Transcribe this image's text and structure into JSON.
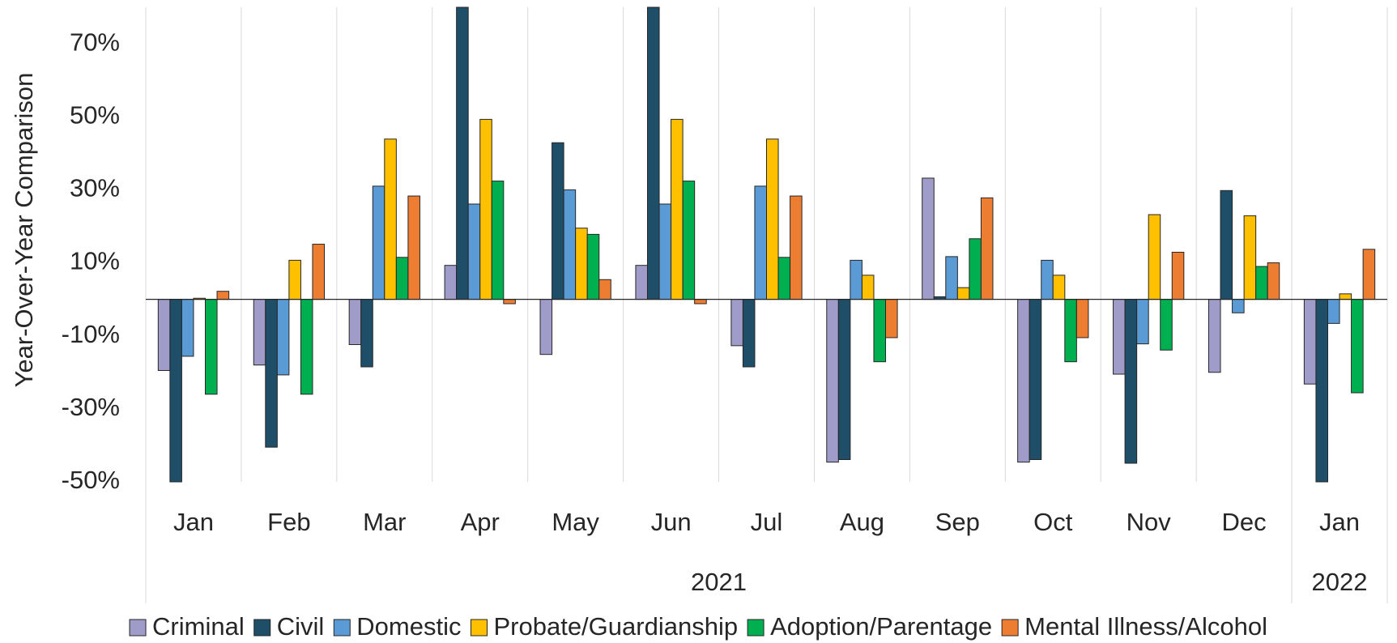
{
  "chart_data": {
    "type": "bar",
    "y_axis_title": "Year-Over-Year Comparison",
    "year_groups": [
      {
        "label": "2021",
        "categories": [
          "Jan",
          "Feb",
          "Mar",
          "Apr",
          "May",
          "Jun",
          "Jul",
          "Aug",
          "Sep",
          "Oct",
          "Nov",
          "Dec"
        ]
      },
      {
        "label": "2022",
        "categories": [
          "Jan"
        ]
      }
    ],
    "series": [
      {
        "name": "Criminal",
        "color": "#a09cc9",
        "values": [
          -19.5,
          -18,
          -12.4,
          9.3,
          -15.1,
          9.3,
          -12.7,
          -44.6,
          33.2,
          -44.6,
          -20.5,
          -20,
          -23.2
        ]
      },
      {
        "name": "Civil",
        "color": "#1f4e69",
        "values": [
          -50,
          -40.5,
          -18.5,
          80,
          42.9,
          80,
          -18.5,
          -43.9,
          0.7,
          -43.9,
          -44.9,
          29.8,
          -50
        ]
      },
      {
        "name": "Domestic",
        "color": "#5b9bd5",
        "values": [
          -15.6,
          -20.7,
          31,
          26.1,
          30,
          26.1,
          31,
          10.7,
          11.7,
          10.7,
          -12.2,
          -3.7,
          -6.6
        ]
      },
      {
        "name": "Probate/Guardianship",
        "color": "#ffc000",
        "values": [
          0.3,
          10.7,
          43.9,
          49.3,
          19.5,
          49.3,
          43.9,
          6.6,
          3.2,
          6.6,
          23.2,
          22.9,
          1.5
        ]
      },
      {
        "name": "Adoption/Parentage",
        "color": "#00b050",
        "values": [
          -26,
          -26,
          11.5,
          32.4,
          17.8,
          32.4,
          11.5,
          -17.1,
          16.6,
          -17.1,
          -13.9,
          9,
          -25.6
        ]
      },
      {
        "name": "Mental Illness/Alcohol",
        "color": "#ed7d31",
        "values": [
          2.2,
          15.1,
          28.3,
          -1.2,
          5.4,
          -1.2,
          28.3,
          -10.5,
          27.8,
          -10.5,
          12.9,
          10,
          13.7
        ]
      }
    ],
    "ylim": [
      -50,
      80
    ],
    "yticks": [
      {
        "value": -50,
        "label": "-50%"
      },
      {
        "value": -30,
        "label": "-30%"
      },
      {
        "value": -10,
        "label": "-10%"
      },
      {
        "value": 10,
        "label": "10%"
      },
      {
        "value": 30,
        "label": "30%"
      },
      {
        "value": 50,
        "label": "50%"
      },
      {
        "value": 70,
        "label": "70%"
      }
    ],
    "grid": true,
    "legend": "bottom"
  }
}
